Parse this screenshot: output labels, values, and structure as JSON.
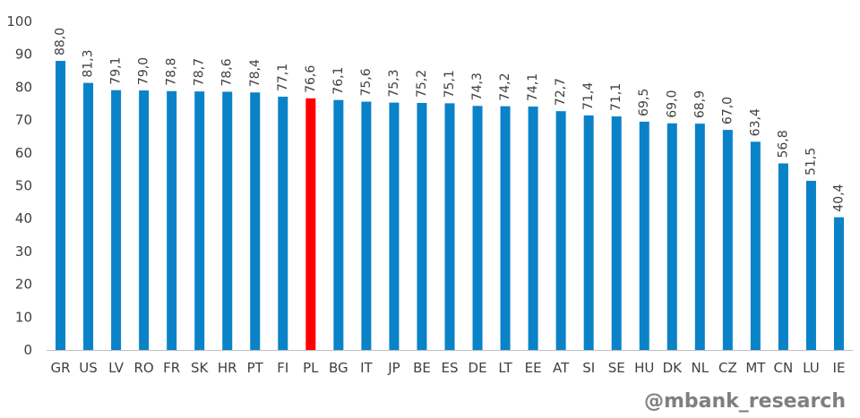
{
  "watermark": "@mbank_research",
  "colors": {
    "bar": "#0a82c8",
    "highlight": "#ff0000",
    "axis": "#bfbfbf",
    "text": "#404040"
  },
  "chart_data": {
    "type": "bar",
    "categories": [
      "GR",
      "US",
      "LV",
      "RO",
      "FR",
      "SK",
      "HR",
      "PT",
      "FI",
      "PL",
      "BG",
      "IT",
      "JP",
      "BE",
      "ES",
      "DE",
      "LT",
      "EE",
      "AT",
      "SI",
      "SE",
      "HU",
      "DK",
      "NL",
      "CZ",
      "MT",
      "CN",
      "LU",
      "IE"
    ],
    "values": [
      88.0,
      81.3,
      79.1,
      79.0,
      78.8,
      78.7,
      78.6,
      78.4,
      77.1,
      76.6,
      76.1,
      75.6,
      75.3,
      75.2,
      75.1,
      74.3,
      74.2,
      74.1,
      72.7,
      71.4,
      71.1,
      69.5,
      69.0,
      68.9,
      67.0,
      63.4,
      56.8,
      51.5,
      40.4
    ],
    "data_labels": [
      "88,0",
      "81,3",
      "79,1",
      "79,0",
      "78,8",
      "78,7",
      "78,6",
      "78,4",
      "77,1",
      "76,6",
      "76,1",
      "75,6",
      "75,3",
      "75,2",
      "75,1",
      "74,3",
      "74,2",
      "74,1",
      "72,7",
      "71,4",
      "71,1",
      "69,5",
      "69,0",
      "68,9",
      "67,0",
      "63,4",
      "56,8",
      "51,5",
      "40,4"
    ],
    "highlight_category": "PL",
    "yticks": [
      "0",
      "10",
      "20",
      "30",
      "40",
      "50",
      "60",
      "70",
      "80",
      "90",
      "100"
    ],
    "ylim": [
      0,
      100
    ],
    "grid": false,
    "legend": "none"
  }
}
